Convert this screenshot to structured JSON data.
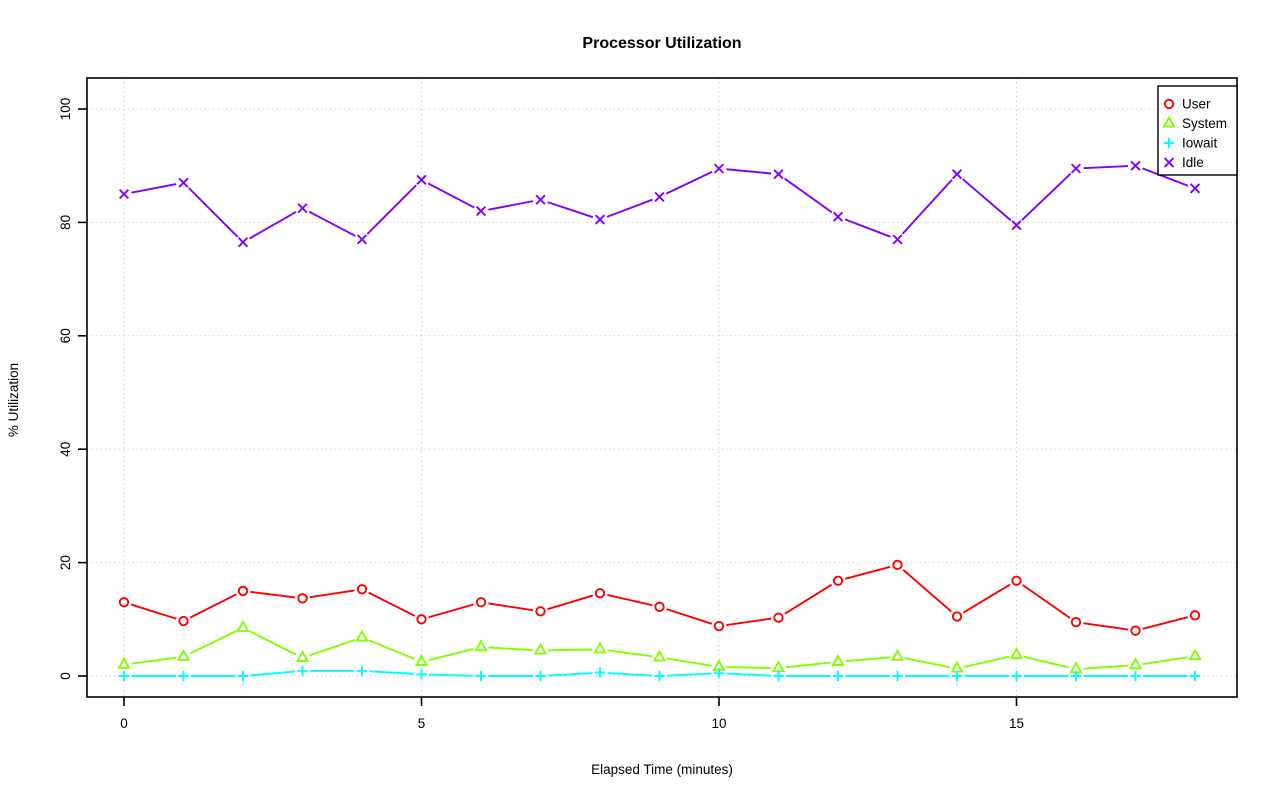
{
  "chart_data": {
    "type": "line",
    "title": "Processor Utilization",
    "xlabel": "Elapsed Time (minutes)",
    "ylabel": "% Utilization",
    "x": [
      0,
      1,
      2,
      3,
      4,
      5,
      6,
      7,
      8,
      9,
      10,
      11,
      12,
      13,
      14,
      15,
      16,
      17,
      18
    ],
    "xticks": [
      0,
      5,
      10,
      15
    ],
    "yticks": [
      0,
      20,
      40,
      60,
      80,
      100
    ],
    "xlim": [
      -0.6,
      18.7
    ],
    "ylim": [
      -3.7,
      105.5
    ],
    "grid": true,
    "grid_style": "dotted",
    "grid_color": "#D3D3D3",
    "axis_color": "#000000",
    "background_color": "#FFFFFF",
    "legend_position": "top-right",
    "line_style": "points-and-lines",
    "series": [
      {
        "name": "User",
        "color": "#FF0000",
        "marker": "circle",
        "values": [
          13,
          9.7,
          15,
          13.7,
          15.3,
          10,
          13,
          11.4,
          14.6,
          12.2,
          8.8,
          10.3,
          16.8,
          19.6,
          10.5,
          16.8,
          9.5,
          8,
          10.7
        ]
      },
      {
        "name": "System",
        "color": "#80FF00",
        "marker": "triangle",
        "values": [
          2,
          3.4,
          8.5,
          3.2,
          6.8,
          2.5,
          5.1,
          4.5,
          4.7,
          3.3,
          1.6,
          1.4,
          2.5,
          3.4,
          1.3,
          3.7,
          1.2,
          1.9,
          3.5
        ]
      },
      {
        "name": "Iowait",
        "color": "#00FFFF",
        "marker": "plus",
        "values": [
          0,
          0,
          0,
          0.9,
          0.9,
          0.3,
          0,
          0,
          0.6,
          0,
          0.5,
          0,
          0,
          0,
          0,
          0,
          0,
          0,
          0
        ]
      },
      {
        "name": "Idle",
        "color": "#8000FF",
        "marker": "x",
        "values": [
          85,
          87,
          76.5,
          82.5,
          77,
          87.5,
          82,
          84,
          80.5,
          84.5,
          89.5,
          88.5,
          81,
          77,
          88.5,
          79.5,
          89.5,
          90,
          86
        ]
      }
    ]
  }
}
